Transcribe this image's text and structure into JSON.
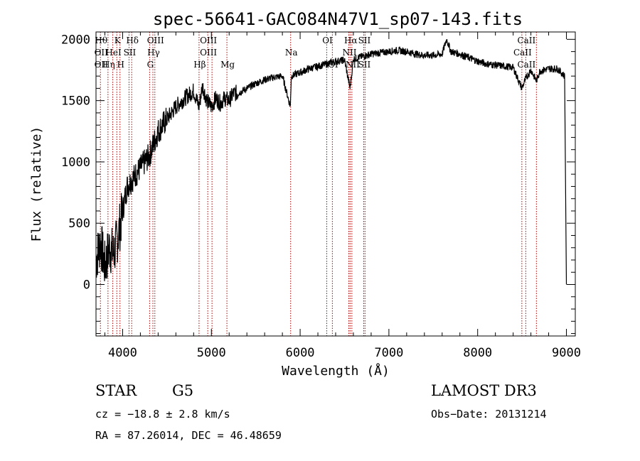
{
  "chart_data": {
    "type": "line",
    "title": "spec-56641-GAC084N47V1_sp07-143.fits",
    "xlabel": "Wavelength (Å)",
    "ylabel": "Flux (relative)",
    "xlim": [
      3700,
      9100
    ],
    "ylim": [
      -420,
      2060
    ],
    "x_ticks": [
      4000,
      5000,
      6000,
      7000,
      8000,
      9000
    ],
    "x_tick_labels": [
      "4000",
      "5000",
      "6000",
      "7000",
      "8000",
      "9000"
    ],
    "y_ticks": [
      0,
      500,
      1000,
      1500,
      2000
    ],
    "y_tick_labels": [
      "0",
      "500",
      "1000",
      "1500",
      "2000"
    ],
    "grid": false,
    "series": [
      {
        "name": "spectrum",
        "color": "#000000",
        "x": [
          3700,
          3750,
          3800,
          3850,
          3900,
          3950,
          4000,
          4050,
          4100,
          4150,
          4200,
          4250,
          4300,
          4350,
          4400,
          4500,
          4600,
          4700,
          4800,
          4860,
          4900,
          4950,
          5000,
          5050,
          5100,
          5150,
          5200,
          5250,
          5300,
          5400,
          5500,
          5600,
          5700,
          5800,
          5890,
          5900,
          6000,
          6100,
          6200,
          6300,
          6400,
          6500,
          6563,
          6600,
          6700,
          6800,
          6900,
          7000,
          7100,
          7200,
          7300,
          7400,
          7500,
          7600,
          7650,
          7700,
          7800,
          7900,
          8000,
          8100,
          8200,
          8300,
          8400,
          8498,
          8542,
          8600,
          8662,
          8700,
          8800,
          8900,
          8980,
          9000
        ],
        "values": [
          200,
          350,
          150,
          300,
          250,
          400,
          600,
          800,
          850,
          900,
          950,
          1000,
          1050,
          1150,
          1250,
          1350,
          1450,
          1520,
          1580,
          1450,
          1620,
          1500,
          1450,
          1520,
          1480,
          1520,
          1500,
          1560,
          1560,
          1600,
          1640,
          1670,
          1690,
          1700,
          1450,
          1700,
          1730,
          1760,
          1780,
          1800,
          1820,
          1830,
          1600,
          1840,
          1860,
          1880,
          1890,
          1900,
          1910,
          1900,
          1880,
          1870,
          1870,
          1880,
          2000,
          1900,
          1880,
          1850,
          1820,
          1800,
          1790,
          1780,
          1770,
          1600,
          1680,
          1750,
          1660,
          1740,
          1760,
          1760,
          1700,
          0
        ]
      }
    ],
    "line_markers": [
      {
        "x": 3750,
        "labels": [
          "Hθ",
          "OII",
          "OII"
        ]
      },
      {
        "x": 3835,
        "labels": [
          "",
          "",
          "Hη"
        ]
      },
      {
        "x": 3889,
        "labels": [
          "",
          "HeI",
          ""
        ]
      },
      {
        "x": 3934,
        "labels": [
          "K",
          "",
          ""
        ]
      },
      {
        "x": 3970,
        "labels": [
          "",
          "",
          "H"
        ]
      },
      {
        "x": 4072,
        "labels": [
          "",
          "SII",
          ""
        ]
      },
      {
        "x": 4102,
        "labels": [
          "Hδ",
          "",
          ""
        ]
      },
      {
        "x": 4304,
        "labels": [
          "",
          "",
          "G"
        ]
      },
      {
        "x": 4341,
        "labels": [
          "",
          "Hγ",
          ""
        ]
      },
      {
        "x": 4363,
        "labels": [
          "OIII",
          "",
          ""
        ]
      },
      {
        "x": 4861,
        "labels": [
          "",
          "",
          "Hβ"
        ]
      },
      {
        "x": 4959,
        "labels": [
          "OIII",
          "OIII",
          ""
        ]
      },
      {
        "x": 5007,
        "labels": [
          "",
          "",
          ""
        ]
      },
      {
        "x": 5175,
        "labels": [
          "",
          "",
          "Mg"
        ]
      },
      {
        "x": 5893,
        "labels": [
          "",
          "Na",
          ""
        ]
      },
      {
        "x": 6300,
        "labels": [
          "OI",
          "",
          ""
        ]
      },
      {
        "x": 6363,
        "labels": [
          "",
          "",
          "OI"
        ]
      },
      {
        "x": 6548,
        "labels": [
          "",
          "NII",
          ""
        ]
      },
      {
        "x": 6563,
        "labels": [
          "Hα",
          "",
          ""
        ]
      },
      {
        "x": 6583,
        "labels": [
          "",
          "",
          "NII"
        ]
      },
      {
        "x": 6716,
        "labels": [
          "SII",
          "",
          "SII"
        ]
      },
      {
        "x": 6731,
        "labels": [
          "",
          "",
          ""
        ]
      },
      {
        "x": 8498,
        "labels": [
          "",
          "CaII",
          ""
        ]
      },
      {
        "x": 8542,
        "labels": [
          "CaII",
          "",
          "CaII"
        ]
      },
      {
        "x": 8662,
        "labels": [
          "",
          "",
          ""
        ]
      }
    ]
  },
  "info": {
    "object_class": "STAR",
    "subclass": "G5",
    "survey": "LAMOST DR3",
    "cz": "cz = −18.8 ± 2.8 km/s",
    "obs_date": "Obs−Date: 20131214",
    "coords": "RA =  87.26014, DEC =  46.48659"
  }
}
